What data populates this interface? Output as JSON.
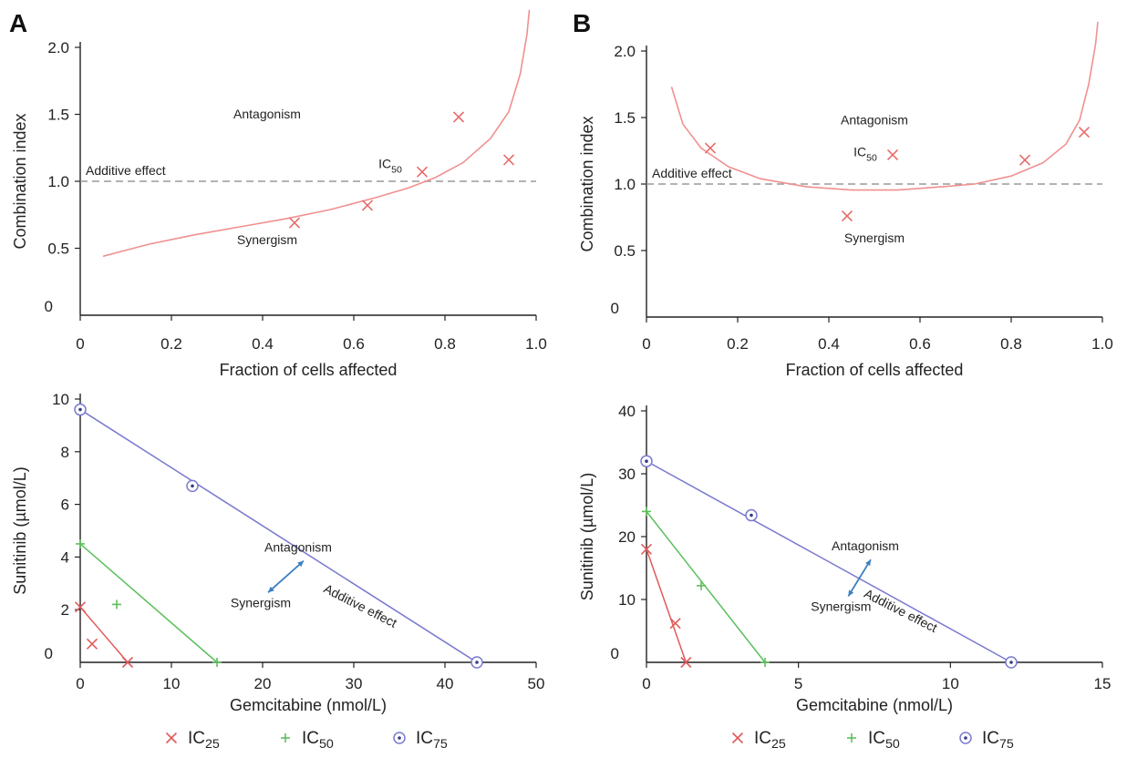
{
  "panel_labels": [
    "A",
    "B"
  ],
  "legend": [
    {
      "label": "IC",
      "sub": "25",
      "marker": "x",
      "color": "#e05a5a"
    },
    {
      "label": "IC",
      "sub": "50",
      "marker": "plus",
      "color": "#5cbf5c"
    },
    {
      "label": "IC",
      "sub": "75",
      "marker": "circle-dot",
      "color": "#7a7ad0"
    }
  ],
  "chart_data": [
    {
      "id": "A-ci",
      "type": "scatter",
      "xlabel": "Fraction of cells affected",
      "ylabel": "Combination index",
      "xlim": [
        0,
        1.0
      ],
      "ylim": [
        0,
        2.0
      ],
      "xticks": [
        "0",
        "0.2",
        "0.4",
        "0.6",
        "0.8",
        "1.0"
      ],
      "xtick_values": [
        0,
        0.2,
        0.4,
        0.6,
        0.8,
        1.0
      ],
      "yticks": [
        "0",
        "0.5",
        "1.0",
        "1.5",
        "2.0"
      ],
      "ytick_values": [
        0,
        0.5,
        1.0,
        1.5,
        2.0
      ],
      "points": [
        {
          "x": 0.47,
          "y": 0.69
        },
        {
          "x": 0.63,
          "y": 0.82
        },
        {
          "x": 0.75,
          "y": 1.07
        },
        {
          "x": 0.83,
          "y": 1.48
        },
        {
          "x": 0.94,
          "y": 1.16
        }
      ],
      "curve": [
        {
          "x": 0.05,
          "y": 0.44
        },
        {
          "x": 0.15,
          "y": 0.53
        },
        {
          "x": 0.25,
          "y": 0.6
        },
        {
          "x": 0.35,
          "y": 0.66
        },
        {
          "x": 0.45,
          "y": 0.72
        },
        {
          "x": 0.55,
          "y": 0.79
        },
        {
          "x": 0.65,
          "y": 0.88
        },
        {
          "x": 0.72,
          "y": 0.95
        },
        {
          "x": 0.78,
          "y": 1.03
        },
        {
          "x": 0.84,
          "y": 1.14
        },
        {
          "x": 0.9,
          "y": 1.32
        },
        {
          "x": 0.94,
          "y": 1.52
        },
        {
          "x": 0.965,
          "y": 1.8
        },
        {
          "x": 0.98,
          "y": 2.1
        },
        {
          "x": 0.985,
          "y": 2.28
        }
      ],
      "reference_line": {
        "y": 1.0,
        "label": "Additive effect"
      },
      "annotations": [
        {
          "text": "Antagonism",
          "x": 0.41,
          "y": 1.47
        },
        {
          "text": "Synergism",
          "x": 0.41,
          "y": 0.53
        },
        {
          "text": "IC",
          "sub": "50",
          "x": 0.68,
          "y": 1.1
        }
      ]
    },
    {
      "id": "B-ci",
      "type": "scatter",
      "xlabel": "Fraction of cells affected",
      "ylabel": "Combination index",
      "xlim": [
        0,
        1.0
      ],
      "ylim": [
        0,
        2.0
      ],
      "xticks": [
        "0",
        "0.2",
        "0.4",
        "0.6",
        "0.8",
        "1.0"
      ],
      "xtick_values": [
        0,
        0.2,
        0.4,
        0.6,
        0.8,
        1.0
      ],
      "yticks": [
        "0",
        "0.5",
        "1.0",
        "1.5",
        "2.0"
      ],
      "ytick_values": [
        0,
        0.5,
        1.0,
        1.5,
        2.0
      ],
      "points": [
        {
          "x": 0.14,
          "y": 1.27
        },
        {
          "x": 0.44,
          "y": 0.76
        },
        {
          "x": 0.54,
          "y": 1.22
        },
        {
          "x": 0.83,
          "y": 1.18
        },
        {
          "x": 0.96,
          "y": 1.39
        }
      ],
      "curve": [
        {
          "x": 0.055,
          "y": 1.73
        },
        {
          "x": 0.08,
          "y": 1.45
        },
        {
          "x": 0.12,
          "y": 1.27
        },
        {
          "x": 0.18,
          "y": 1.13
        },
        {
          "x": 0.25,
          "y": 1.04
        },
        {
          "x": 0.35,
          "y": 0.98
        },
        {
          "x": 0.45,
          "y": 0.955
        },
        {
          "x": 0.55,
          "y": 0.955
        },
        {
          "x": 0.65,
          "y": 0.98
        },
        {
          "x": 0.72,
          "y": 1.0
        },
        {
          "x": 0.8,
          "y": 1.06
        },
        {
          "x": 0.87,
          "y": 1.16
        },
        {
          "x": 0.92,
          "y": 1.3
        },
        {
          "x": 0.95,
          "y": 1.48
        },
        {
          "x": 0.97,
          "y": 1.75
        },
        {
          "x": 0.985,
          "y": 2.05
        },
        {
          "x": 0.99,
          "y": 2.22
        }
      ],
      "reference_line": {
        "y": 1.0,
        "label": "Additive effect"
      },
      "annotations": [
        {
          "text": "Antagonism",
          "x": 0.5,
          "y": 1.45
        },
        {
          "text": "Synergism",
          "x": 0.5,
          "y": 0.56
        },
        {
          "text": "IC",
          "sub": "50",
          "x": 0.48,
          "y": 1.21
        }
      ]
    },
    {
      "id": "A-iso",
      "type": "scatter",
      "xlabel": "Gemcitabine (nmol/L)",
      "ylabel": "Sunitinib (µmol/L)",
      "xlim": [
        0,
        50
      ],
      "ylim": [
        0,
        10
      ],
      "xticks": [
        "0",
        "10",
        "20",
        "30",
        "40",
        "50"
      ],
      "xtick_values": [
        0,
        10,
        20,
        30,
        40,
        50
      ],
      "yticks": [
        "0",
        "2",
        "4",
        "6",
        "8",
        "10"
      ],
      "ytick_values": [
        0,
        2,
        4,
        6,
        8,
        10
      ],
      "series": [
        {
          "name": "IC25",
          "marker": "x",
          "color": "#e05a5a",
          "line": [
            {
              "x": 0,
              "y": 2.1
            },
            {
              "x": 5.2,
              "y": 0
            }
          ],
          "points": [
            {
              "x": 0,
              "y": 2.1
            },
            {
              "x": 5.2,
              "y": 0
            },
            {
              "x": 1.3,
              "y": 0.7
            }
          ]
        },
        {
          "name": "IC50",
          "marker": "plus",
          "color": "#5cbf5c",
          "line": [
            {
              "x": 0,
              "y": 4.5
            },
            {
              "x": 15,
              "y": 0
            }
          ],
          "points": [
            {
              "x": 0,
              "y": 4.5
            },
            {
              "x": 15,
              "y": 0
            },
            {
              "x": 4,
              "y": 2.2
            }
          ]
        },
        {
          "name": "IC75",
          "marker": "circle-dot",
          "color": "#7a7ad0",
          "line": [
            {
              "x": 0,
              "y": 9.6
            },
            {
              "x": 43.5,
              "y": 0
            }
          ],
          "points": [
            {
              "x": 0,
              "y": 9.6
            },
            {
              "x": 43.5,
              "y": 0
            },
            {
              "x": 12.3,
              "y": 6.7
            }
          ]
        }
      ],
      "annotations": [
        {
          "text": "Antagonism",
          "x": 23.9,
          "y": 4.2
        },
        {
          "text": "Synergism",
          "x": 19.8,
          "y": 2.1
        },
        {
          "text": "Additive effect",
          "x": 30.5,
          "y": 2.0,
          "rotate": 27
        }
      ]
    },
    {
      "id": "B-iso",
      "type": "scatter",
      "xlabel": "Gemcitabine (nmol/L)",
      "ylabel": "Sunitinib (µmol/L)",
      "xlim": [
        0,
        15
      ],
      "ylim": [
        0,
        40
      ],
      "xticks": [
        "0",
        "5",
        "10",
        "15"
      ],
      "xtick_values": [
        0,
        5,
        10,
        15
      ],
      "yticks": [
        "0",
        "10",
        "20",
        "30",
        "40"
      ],
      "ytick_values": [
        0,
        10,
        20,
        30,
        40
      ],
      "series": [
        {
          "name": "IC25",
          "marker": "x",
          "color": "#e05a5a",
          "line": [
            {
              "x": 0,
              "y": 18
            },
            {
              "x": 1.3,
              "y": 0
            }
          ],
          "points": [
            {
              "x": 0,
              "y": 18
            },
            {
              "x": 1.3,
              "y": 0
            },
            {
              "x": 0.95,
              "y": 6.2
            }
          ]
        },
        {
          "name": "IC50",
          "marker": "plus",
          "color": "#5cbf5c",
          "line": [
            {
              "x": 0,
              "y": 24
            },
            {
              "x": 3.9,
              "y": 0
            }
          ],
          "points": [
            {
              "x": 0,
              "y": 24
            },
            {
              "x": 3.9,
              "y": 0
            },
            {
              "x": 1.8,
              "y": 12.2
            }
          ]
        },
        {
          "name": "IC75",
          "marker": "circle-dot",
          "color": "#7a7ad0",
          "line": [
            {
              "x": 0,
              "y": 32
            },
            {
              "x": 12,
              "y": 0
            }
          ],
          "points": [
            {
              "x": 0,
              "y": 32
            },
            {
              "x": 12,
              "y": 0
            },
            {
              "x": 3.45,
              "y": 23.4
            }
          ]
        }
      ],
      "annotations": [
        {
          "text": "Antagonism",
          "x": 7.2,
          "y": 17.8
        },
        {
          "text": "Synergism",
          "x": 6.4,
          "y": 8.2
        },
        {
          "text": "Additive effect",
          "x": 8.3,
          "y": 7.6,
          "rotate": 27
        }
      ]
    }
  ]
}
